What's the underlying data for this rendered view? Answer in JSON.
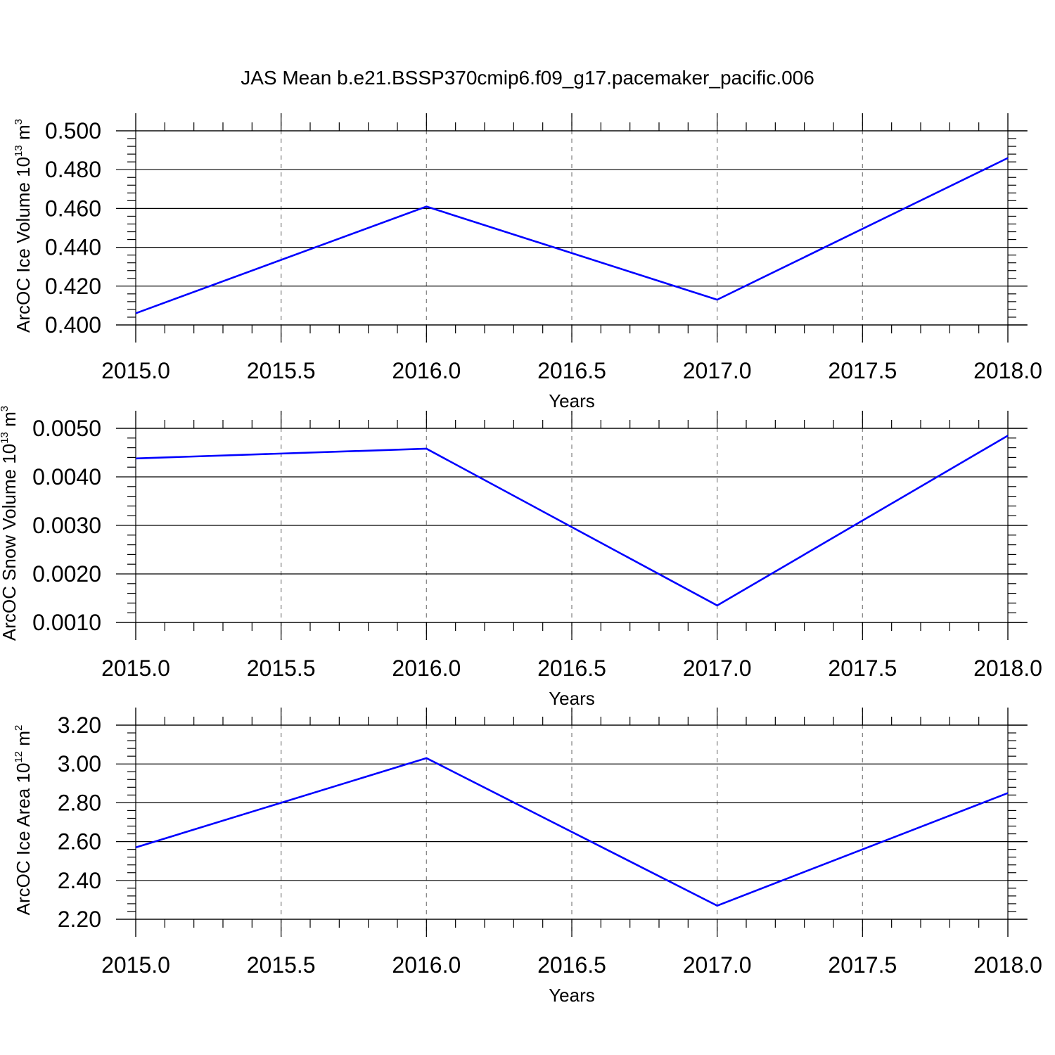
{
  "chart_data": {
    "title": "JAS Mean b.e21.BSSP370cmip6.f09_g17.pacemaker_pacific.006",
    "series_color": "#0000ff",
    "panels": [
      {
        "type": "line",
        "ylabel": {
          "text": "ArcOC Ice Volume 10",
          "sup1": "13",
          "mid": " m",
          "sup2": "3"
        },
        "xlabel": "Years",
        "xlim": [
          2015.0,
          2018.0
        ],
        "ylim": [
          0.4,
          0.5
        ],
        "xticks": [
          "2015.0",
          "2015.5",
          "2016.0",
          "2016.5",
          "2017.0",
          "2017.5",
          "2018.0"
        ],
        "yticks": [
          "0.400",
          "0.420",
          "0.440",
          "0.460",
          "0.480",
          "0.500"
        ],
        "grid": "vertical dashed",
        "x": [
          2015,
          2016,
          2017,
          2018
        ],
        "y": [
          0.406,
          0.461,
          0.413,
          0.486
        ]
      },
      {
        "type": "line",
        "ylabel": {
          "text": "ArcOC Snow Volume 10",
          "sup1": "13",
          "mid": " m",
          "sup2": "3"
        },
        "xlabel": "Years",
        "xlim": [
          2015.0,
          2018.0
        ],
        "ylim": [
          0.001,
          0.005
        ],
        "xticks": [
          "2015.0",
          "2015.5",
          "2016.0",
          "2016.5",
          "2017.0",
          "2017.5",
          "2018.0"
        ],
        "yticks": [
          "0.0010",
          "0.0020",
          "0.0030",
          "0.0040",
          "0.0050"
        ],
        "grid": "vertical dashed",
        "x": [
          2015,
          2016,
          2017,
          2018
        ],
        "y": [
          0.00438,
          0.00458,
          0.00135,
          0.00485
        ]
      },
      {
        "type": "line",
        "ylabel": {
          "text": "ArcOC Ice Area 10",
          "sup1": "12",
          "mid": " m",
          "sup2": "2"
        },
        "xlabel": "Years",
        "xlim": [
          2015.0,
          2018.0
        ],
        "ylim": [
          2.2,
          3.2
        ],
        "xticks": [
          "2015.0",
          "2015.5",
          "2016.0",
          "2016.5",
          "2017.0",
          "2017.5",
          "2018.0"
        ],
        "yticks": [
          "2.20",
          "2.40",
          "2.60",
          "2.80",
          "3.00",
          "3.20"
        ],
        "grid": "vertical dashed",
        "x": [
          2015,
          2016,
          2017,
          2018
        ],
        "y": [
          2.57,
          3.03,
          2.27,
          2.85
        ]
      }
    ]
  }
}
